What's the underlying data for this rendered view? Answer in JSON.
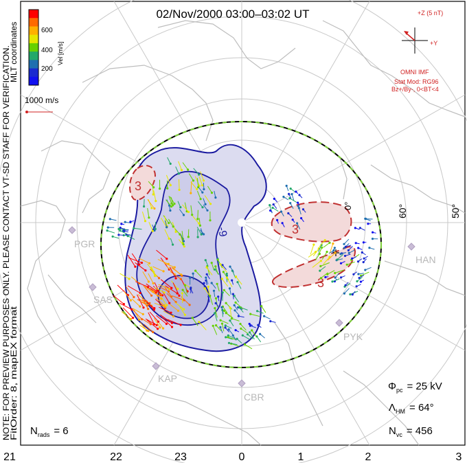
{
  "title": "02/Nov/2000 03:00–03:02 UT",
  "colorbar": {
    "label": "Vel [m/s]",
    "ticks": [
      "600",
      "400",
      "200"
    ],
    "colors": [
      "#ff0000",
      "#ff6a00",
      "#ffb000",
      "#e6e600",
      "#66d000",
      "#22a86a",
      "#1f6fb0",
      "#1a2ad0",
      "#1010f0"
    ]
  },
  "coords_label": "MLT coordinates",
  "ref_vector_label": "1000 m/s",
  "imf": {
    "bz_label": "+Z (5 nT)",
    "by_label": "+Y",
    "source": "OMNI IMF",
    "model": "Stat Mod: RG96",
    "condition": "Bz+/By-, 0<BT<4"
  },
  "side_notes": {
    "preview": "NOTE: FOR PREVIEW PURPOSES ONLY. PLEASE CONTACT VT-SD STAFF FOR VERIFICATION.",
    "fitorder": "FitOrder: 8, mapEX format"
  },
  "stations": [
    "PGR",
    "SAS",
    "KAP",
    "CBR",
    "PYK",
    "HAN"
  ],
  "lat_labels": [
    "60°",
    "50°",
    "0°"
  ],
  "contours": {
    "neg": "-9",
    "pos": "3"
  },
  "stats": {
    "phi_symbol": "Φ",
    "phi_sub": "pc",
    "phi_value": "= 25 kV",
    "lambda_symbol": "Λ",
    "lambda_sub": "HM",
    "lambda_value": "= 64°",
    "n_symbol": "N",
    "n_sub": "vc",
    "n_value": "= 456",
    "nrads_symbol": "N",
    "nrads_sub": "rads",
    "nrads_value": "= 6"
  },
  "mlt_ticks": [
    "21",
    "22",
    "23",
    "0",
    "1",
    "2",
    "3"
  ]
}
